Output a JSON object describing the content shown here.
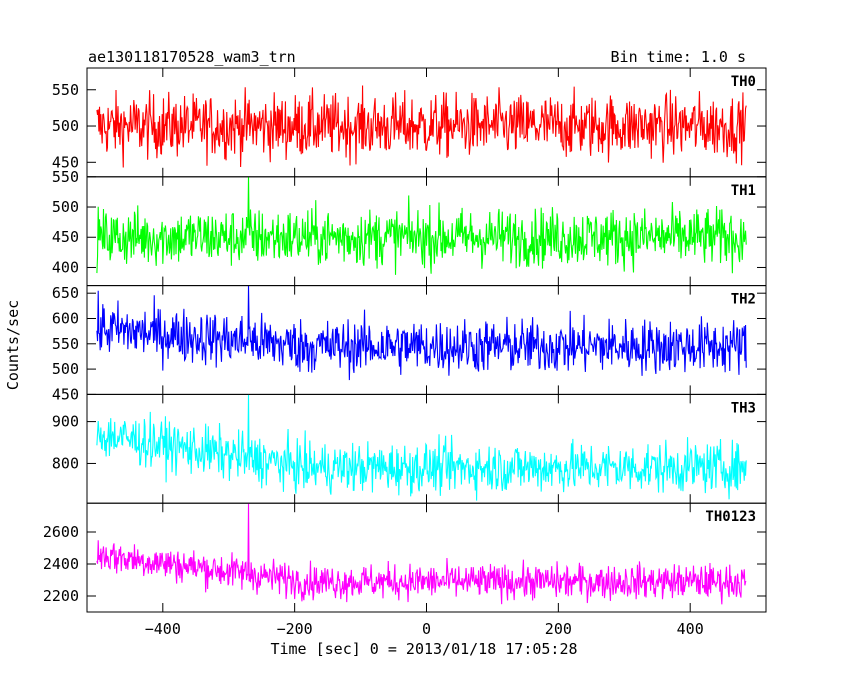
{
  "header": {
    "title": "ae130118170528_wam3_trn",
    "bin_time": "Bin time: 1.0 s"
  },
  "chart_data": {
    "type": "line",
    "xlabel": "Time [sec] 0 = 2013/01/18 17:05:28",
    "ylabel": "Counts/sec",
    "xlim": [
      -515,
      515
    ],
    "x_range": [
      -500,
      485
    ],
    "x_ticks": [
      -400,
      -200,
      0,
      200,
      400
    ],
    "x_tick_labels": [
      "−400",
      "−200",
      "0",
      "200",
      "400"
    ],
    "panels": [
      {
        "name": "TH0",
        "color": "#ff0000",
        "ylim": [
          430,
          580
        ],
        "y_ticks": [
          450,
          500,
          550
        ],
        "y_tick_labels": [
          "450",
          "500",
          "550"
        ],
        "baseline": 500,
        "noise": 22,
        "spike": null
      },
      {
        "name": "TH1",
        "color": "#00ff00",
        "ylim": [
          370,
          550
        ],
        "y_ticks": [
          400,
          450,
          500,
          550
        ],
        "y_tick_labels": [
          "400",
          "450",
          "500",
          "550"
        ],
        "baseline": 450,
        "noise": 24,
        "spike": {
          "x": -270,
          "y": 550
        }
      },
      {
        "name": "TH2",
        "color": "#0000ff",
        "ylim": [
          450,
          665
        ],
        "y_ticks": [
          450,
          500,
          550,
          600,
          650
        ],
        "y_tick_labels": [
          "450",
          "500",
          "550",
          "600",
          "650"
        ],
        "baseline": 545,
        "baseline_start": 580,
        "noise": 27,
        "spike": {
          "x": -270,
          "y": 665
        }
      },
      {
        "name": "TH3",
        "color": "#00ffff",
        "ylim": [
          705,
          965
        ],
        "y_ticks": [
          800,
          900
        ],
        "y_tick_labels": [
          "800",
          "900"
        ],
        "baseline": 790,
        "baseline_start": 870,
        "noise": 30,
        "spike": {
          "x": -270,
          "y": 965
        }
      },
      {
        "name": "TH0123",
        "color": "#ff00ff",
        "ylim": [
          2100,
          2780
        ],
        "y_ticks": [
          2200,
          2400,
          2600
        ],
        "y_tick_labels": [
          "2200",
          "2400",
          "2600"
        ],
        "baseline": 2290,
        "baseline_start": 2460,
        "noise": 55,
        "spike": {
          "x": -270,
          "y": 2780
        }
      }
    ]
  }
}
